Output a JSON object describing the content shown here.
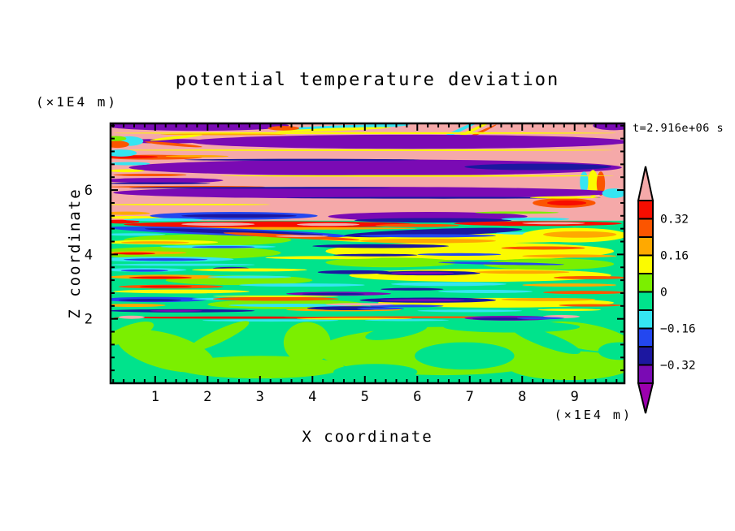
{
  "chart": {
    "title": "potential temperature deviation",
    "time_label": "t=2.916e+06 s",
    "xlabel": "X coordinate",
    "ylabel": "Z coordinate",
    "x_unit": "(×1E4 m)",
    "z_unit": "(×1E4 m)"
  },
  "chart_data": {
    "type": "heatmap",
    "subtype": "filled_contour_snapshot",
    "title": "potential temperature deviation",
    "xlabel": "X coordinate",
    "ylabel": "Z coordinate",
    "axis_units": "(×1E4 m)",
    "time_annotation": "t=2.916e+06 s",
    "x_range_1e4_m": [
      0.15,
      9.95
    ],
    "z_range_1e4_m": [
      0,
      8.07
    ],
    "xticks": [
      1,
      2,
      3,
      4,
      5,
      6,
      7,
      8,
      9
    ],
    "zticks": [
      2,
      4,
      6
    ],
    "x_minor_step": 0.2,
    "z_minor_step": 0.4,
    "grid": false,
    "legend_position": "right-colorbar",
    "colorbar": {
      "tick_labels": [
        "0.32",
        "0.16",
        "0",
        "−0.16",
        "−0.32"
      ],
      "tick_values": [
        0.32,
        0.16,
        0,
        -0.16,
        -0.32
      ],
      "level_step": 0.08,
      "levels_top_to_bottom": [
        0.4,
        0.32,
        0.24,
        0.16,
        0.08,
        0,
        -0.08,
        -0.16,
        -0.24,
        -0.32,
        -0.4
      ],
      "box_colors_top_to_bottom": [
        "#f70d00",
        "#fb5500",
        "#ffa900",
        "#fbfb00",
        "#7bef00",
        "#00e38c",
        "#35e5f2",
        "#2347f0",
        "#1c17a0",
        "#7a0ab4"
      ],
      "over_arrow_color": "#f5a9a9",
      "under_arrow_color": "#9b00ae"
    },
    "structure_notes": "Stratified turbulent field: z>5 pink background (+0.4..0.48) with dark-violet lens bands (-0.32..-0.4) rimmed by thin yellow/orange/red and cyan filaments; 2<z<5 green background near 0 with dense horizontal streaks spanning the whole palette; z<2 smooth spring-green/chartreuse convective tongues near 0; thin multicolour interface near z≈2.1.",
    "palette": {
      "P": "#f5a9a9",
      "R": "#f70d00",
      "V": "#fb5500",
      "O": "#ffa900",
      "Y": "#fbfb00",
      "C": "#7bef00",
      "G": "#00e38c",
      "A": "#35e5f2",
      "B": "#2347f0",
      "N": "#1c17a0",
      "I": "#7a0ab4",
      "M": "#9b00ae"
    },
    "background_regions": [
      {
        "z0": 5.05,
        "z1": 8.07,
        "color": "P"
      },
      {
        "z0": 0.0,
        "z1": 5.05,
        "color": "G"
      }
    ],
    "streaks": [
      [
        1.8,
        8.0,
        3.5,
        0.32,
        "I"
      ],
      [
        9.75,
        8.0,
        0.8,
        0.28,
        "I"
      ],
      [
        4.55,
        7.95,
        2.6,
        0.12,
        "A",
        -2
      ],
      [
        4.4,
        7.88,
        2.2,
        0.09,
        "Y",
        -2
      ],
      [
        3.45,
        7.92,
        0.6,
        0.14,
        "V"
      ],
      [
        6.75,
        7.82,
        1.1,
        0.1,
        "A",
        -25
      ],
      [
        6.95,
        7.78,
        1.1,
        0.09,
        "Y",
        -25
      ],
      [
        7.1,
        7.72,
        0.9,
        0.08,
        "V",
        -25
      ],
      [
        5,
        7.77,
        9.6,
        0.055,
        "Y"
      ],
      [
        2.3,
        7.73,
        2.4,
        0.05,
        "O"
      ],
      [
        5.85,
        7.5,
        8.4,
        0.44,
        "I"
      ],
      [
        1.2,
        7.52,
        1.7,
        0.14,
        "I"
      ],
      [
        1.4,
        7.63,
        1.0,
        0.09,
        "Y",
        -6
      ],
      [
        1.35,
        7.42,
        1.1,
        0.09,
        "V",
        5
      ],
      [
        0.5,
        7.52,
        0.55,
        0.3,
        "A"
      ],
      [
        0.28,
        7.42,
        0.45,
        0.22,
        "V"
      ],
      [
        0.25,
        7.6,
        0.4,
        0.16,
        "C"
      ],
      [
        5,
        7.24,
        9.5,
        0.05,
        "Y"
      ],
      [
        0.95,
        7.02,
        1.9,
        0.15,
        "V"
      ],
      [
        0.55,
        7.03,
        1.0,
        0.09,
        "R"
      ],
      [
        0.35,
        7.15,
        0.6,
        0.22,
        "A"
      ],
      [
        1.8,
        7.05,
        1.2,
        0.07,
        "O"
      ],
      [
        5.2,
        6.7,
        9.4,
        0.5,
        "I"
      ],
      [
        8.3,
        6.72,
        2.8,
        0.2,
        "N"
      ],
      [
        3.8,
        6.94,
        4.5,
        0.06,
        "N"
      ],
      [
        0.5,
        6.82,
        0.8,
        0.1,
        "A"
      ],
      [
        0.45,
        6.6,
        0.7,
        0.09,
        "Y"
      ],
      [
        0.9,
        6.47,
        1.4,
        0.08,
        "V"
      ],
      [
        9.35,
        6.2,
        0.2,
        0.85,
        "Y"
      ],
      [
        9.5,
        6.2,
        0.16,
        0.75,
        "V"
      ],
      [
        9.18,
        6.25,
        0.16,
        0.65,
        "A"
      ],
      [
        6,
        6.44,
        7.5,
        0.05,
        "Y"
      ],
      [
        1.15,
        6.3,
        2.3,
        0.16,
        "I"
      ],
      [
        1.05,
        6.21,
        2.0,
        0.06,
        "N"
      ],
      [
        1.6,
        6.1,
        3.0,
        0.06,
        "V"
      ],
      [
        5,
        5.92,
        9.6,
        0.36,
        "I"
      ],
      [
        3,
        6.07,
        5,
        0.055,
        "N"
      ],
      [
        6.5,
        5.76,
        6,
        0.055,
        "N"
      ],
      [
        8.8,
        5.6,
        1.2,
        0.3,
        "V"
      ],
      [
        8.85,
        5.6,
        0.75,
        0.16,
        "R"
      ],
      [
        8.8,
        5.77,
        1.3,
        0.07,
        "Y"
      ],
      [
        9.75,
        5.9,
        0.45,
        0.3,
        "A"
      ],
      [
        1.6,
        5.55,
        3.2,
        0.05,
        "Y"
      ],
      [
        0.45,
        5.28,
        0.9,
        0.1,
        "O"
      ],
      [
        0.55,
        5.15,
        1.1,
        0.09,
        "Y"
      ],
      [
        0.35,
        5.02,
        0.7,
        0.12,
        "R"
      ],
      [
        2.5,
        5.2,
        3.2,
        0.24,
        "B"
      ],
      [
        2.6,
        5.2,
        2.2,
        0.11,
        "N"
      ],
      [
        1.15,
        5.08,
        1.5,
        0.09,
        "A"
      ],
      [
        6.2,
        5.18,
        3.8,
        0.28,
        "I"
      ],
      [
        6.3,
        5.06,
        3.0,
        0.14,
        "N"
      ],
      [
        8.25,
        5.1,
        1.3,
        0.09,
        "A"
      ],
      [
        7.9,
        5.3,
        1.6,
        0.07,
        "C"
      ],
      [
        2.0,
        4.45,
        3.2,
        0.35,
        "C"
      ],
      [
        1.6,
        4.05,
        3.6,
        0.4,
        "C"
      ],
      [
        2.6,
        3.2,
        2.8,
        0.3,
        "C"
      ],
      [
        3.5,
        2.45,
        3.0,
        0.3,
        "C"
      ],
      [
        7.0,
        4.1,
        5.5,
        0.55,
        "Y"
      ],
      [
        7.2,
        3.35,
        5.0,
        0.4,
        "Y"
      ],
      [
        6.8,
        4.5,
        5.5,
        0.3,
        "Y"
      ],
      [
        7.5,
        2.5,
        4.5,
        0.3,
        "Y"
      ],
      [
        5.5,
        3.75,
        2.5,
        0.3,
        "C"
      ],
      [
        8.5,
        3.7,
        2.5,
        0.35,
        "C"
      ],
      [
        3.2,
        4.93,
        5.6,
        0.2,
        "R"
      ],
      [
        2.2,
        4.94,
        1.4,
        0.1,
        "P"
      ],
      [
        4.3,
        4.93,
        1.2,
        0.09,
        "P"
      ],
      [
        3.2,
        4.81,
        5.6,
        0.08,
        "O"
      ],
      [
        8.3,
        4.96,
        3.2,
        0.15,
        "R"
      ],
      [
        8.6,
        4.97,
        1.2,
        0.07,
        "P"
      ],
      [
        6.0,
        4.9,
        1.6,
        0.1,
        "V"
      ],
      [
        2.4,
        4.7,
        4.6,
        0.22,
        "B",
        2
      ],
      [
        2.5,
        4.7,
        3.4,
        0.12,
        "N",
        2
      ],
      [
        0.6,
        4.62,
        1.2,
        0.08,
        "A"
      ],
      [
        3.6,
        4.56,
        2.6,
        0.12,
        "V",
        3
      ],
      [
        3.8,
        4.57,
        1.0,
        0.06,
        "P"
      ],
      [
        6.3,
        4.68,
        3.4,
        0.22,
        "N",
        -2
      ],
      [
        6.2,
        4.58,
        2.6,
        0.1,
        "B"
      ],
      [
        8.2,
        4.66,
        1.4,
        0.09,
        "A"
      ],
      [
        9.0,
        4.6,
        2.0,
        0.45,
        "Y"
      ],
      [
        9.1,
        4.62,
        1.4,
        0.2,
        "O"
      ],
      [
        1.1,
        4.38,
        2.2,
        0.14,
        "Y"
      ],
      [
        1.0,
        4.37,
        1.3,
        0.08,
        "O"
      ],
      [
        6.2,
        4.42,
        2.6,
        0.14,
        "O"
      ],
      [
        2.2,
        4.24,
        2.2,
        0.1,
        "A"
      ],
      [
        2.3,
        4.23,
        1.2,
        0.06,
        "B"
      ],
      [
        5.3,
        4.26,
        2.6,
        0.12,
        "N"
      ],
      [
        0.8,
        4.05,
        1.6,
        0.1,
        "O"
      ],
      [
        0.6,
        4.03,
        0.8,
        0.07,
        "R"
      ],
      [
        8.4,
        4.2,
        1.6,
        0.1,
        "V"
      ],
      [
        5.2,
        3.98,
        1.6,
        0.08,
        "N"
      ],
      [
        6.8,
        4.0,
        1.6,
        0.08,
        "B"
      ],
      [
        1.2,
        3.85,
        2.6,
        0.16,
        "A"
      ],
      [
        1.2,
        3.84,
        1.6,
        0.08,
        "B"
      ],
      [
        4.2,
        3.9,
        2.2,
        0.1,
        "Y"
      ],
      [
        8.9,
        3.95,
        1.8,
        0.1,
        "O"
      ],
      [
        1.5,
        3.68,
        2.8,
        0.07,
        "A"
      ],
      [
        2.45,
        3.56,
        0.7,
        0.1,
        "N"
      ],
      [
        7.6,
        3.72,
        2.4,
        0.08,
        "B",
        1
      ],
      [
        0.8,
        3.52,
        1.6,
        0.12,
        "A"
      ],
      [
        0.8,
        3.5,
        0.9,
        0.07,
        "B"
      ],
      [
        2.8,
        3.52,
        2.2,
        0.1,
        "Y"
      ],
      [
        4.8,
        3.45,
        1.4,
        0.12,
        "N"
      ],
      [
        6.2,
        3.42,
        2.0,
        0.14,
        "N"
      ],
      [
        6.1,
        3.42,
        1.2,
        0.08,
        "I"
      ],
      [
        8.0,
        3.45,
        1.8,
        0.1,
        "O"
      ],
      [
        1.2,
        3.3,
        2.2,
        0.14,
        "O"
      ],
      [
        1.1,
        3.28,
        1.2,
        0.08,
        "R"
      ],
      [
        2.8,
        3.3,
        1.6,
        0.08,
        "A"
      ],
      [
        9.3,
        3.28,
        1.4,
        0.1,
        "V"
      ],
      [
        1.3,
        3.0,
        2.0,
        0.12,
        "V"
      ],
      [
        1.2,
        3.0,
        1.0,
        0.07,
        "R"
      ],
      [
        3.8,
        3.05,
        2.4,
        0.1,
        "A"
      ],
      [
        6.6,
        3.08,
        2.2,
        0.12,
        "A"
      ],
      [
        8.9,
        3.05,
        1.8,
        0.1,
        "O"
      ],
      [
        1.5,
        2.85,
        2.6,
        0.12,
        "Y"
      ],
      [
        4.5,
        2.78,
        2.0,
        0.12,
        "I"
      ],
      [
        4.4,
        2.77,
        1.2,
        0.07,
        "N"
      ],
      [
        5.9,
        2.92,
        1.2,
        0.08,
        "N"
      ],
      [
        7.3,
        2.85,
        1.8,
        0.1,
        "A"
      ],
      [
        9.2,
        2.82,
        1.6,
        0.1,
        "V"
      ],
      [
        1.0,
        2.6,
        2.0,
        0.16,
        "B"
      ],
      [
        0.9,
        2.58,
        1.2,
        0.08,
        "N"
      ],
      [
        2.2,
        2.62,
        1.0,
        0.07,
        "A"
      ],
      [
        3.3,
        2.62,
        2.4,
        0.12,
        "V"
      ],
      [
        3.3,
        2.7,
        2.4,
        0.05,
        "Y"
      ],
      [
        6.2,
        2.58,
        2.6,
        0.16,
        "N"
      ],
      [
        6.1,
        2.58,
        1.6,
        0.08,
        "I"
      ],
      [
        8.5,
        2.6,
        1.8,
        0.1,
        "O"
      ],
      [
        0.6,
        2.42,
        1.2,
        0.1,
        "O"
      ],
      [
        3.6,
        2.42,
        2.4,
        0.1,
        "A"
      ],
      [
        5.8,
        2.4,
        1.4,
        0.08,
        "B"
      ],
      [
        9.3,
        2.42,
        1.2,
        0.08,
        "V"
      ],
      [
        1.5,
        2.25,
        2.8,
        0.1,
        "N"
      ],
      [
        1.4,
        2.25,
        1.0,
        0.06,
        "I"
      ],
      [
        4.6,
        2.28,
        2.2,
        0.09,
        "O"
      ],
      [
        7.0,
        2.25,
        2.0,
        0.08,
        "A"
      ],
      [
        8.9,
        2.28,
        1.2,
        0.07,
        "Y"
      ],
      [
        4.9,
        2.45,
        1.3,
        0.08,
        "P"
      ],
      [
        4.7,
        2.33,
        1.6,
        0.12,
        "N"
      ],
      [
        5.3,
        2.32,
        0.9,
        0.07,
        "B"
      ],
      [
        2.6,
        2.04,
        4.8,
        0.07,
        "R"
      ],
      [
        6.2,
        2.05,
        5.5,
        0.06,
        "V"
      ],
      [
        0.55,
        2.05,
        0.5,
        0.1,
        "P"
      ],
      [
        8.75,
        2.07,
        0.7,
        0.1,
        "P"
      ],
      [
        4.8,
        2.0,
        2.2,
        0.05,
        "Y"
      ],
      [
        3.2,
        1.95,
        2.6,
        0.07,
        "A"
      ],
      [
        5.8,
        1.96,
        1.6,
        0.06,
        "A"
      ],
      [
        7.75,
        2.02,
        1.7,
        0.15,
        "I"
      ],
      [
        7.6,
        2.0,
        1.1,
        0.08,
        "N"
      ],
      [
        8.35,
        2.02,
        0.9,
        0.07,
        "B"
      ],
      [
        1.2,
        1.0,
        1.9,
        1.1,
        "C",
        15
      ],
      [
        0.5,
        1.55,
        1.0,
        0.5,
        "C",
        -20
      ],
      [
        3.0,
        0.5,
        3.2,
        0.7,
        "C"
      ],
      [
        3.9,
        1.25,
        0.9,
        1.3,
        "C",
        5
      ],
      [
        2.2,
        1.45,
        1.3,
        0.4,
        "C",
        -25
      ],
      [
        6.5,
        1.0,
        4.8,
        1.5,
        "C"
      ],
      [
        8.9,
        0.55,
        2.4,
        0.9,
        "C"
      ],
      [
        9.2,
        1.45,
        1.8,
        0.8,
        "C",
        10
      ],
      [
        6.9,
        0.85,
        1.9,
        0.85,
        "G"
      ],
      [
        5.2,
        0.35,
        1.6,
        0.5,
        "G"
      ],
      [
        8.45,
        1.35,
        1.4,
        0.45,
        "G",
        20
      ],
      [
        9.85,
        1.0,
        0.8,
        0.55,
        "G"
      ],
      [
        7.8,
        1.75,
        2.6,
        0.35,
        "G"
      ],
      [
        5.6,
        1.6,
        1.2,
        0.4,
        "G",
        -10
      ]
    ]
  }
}
